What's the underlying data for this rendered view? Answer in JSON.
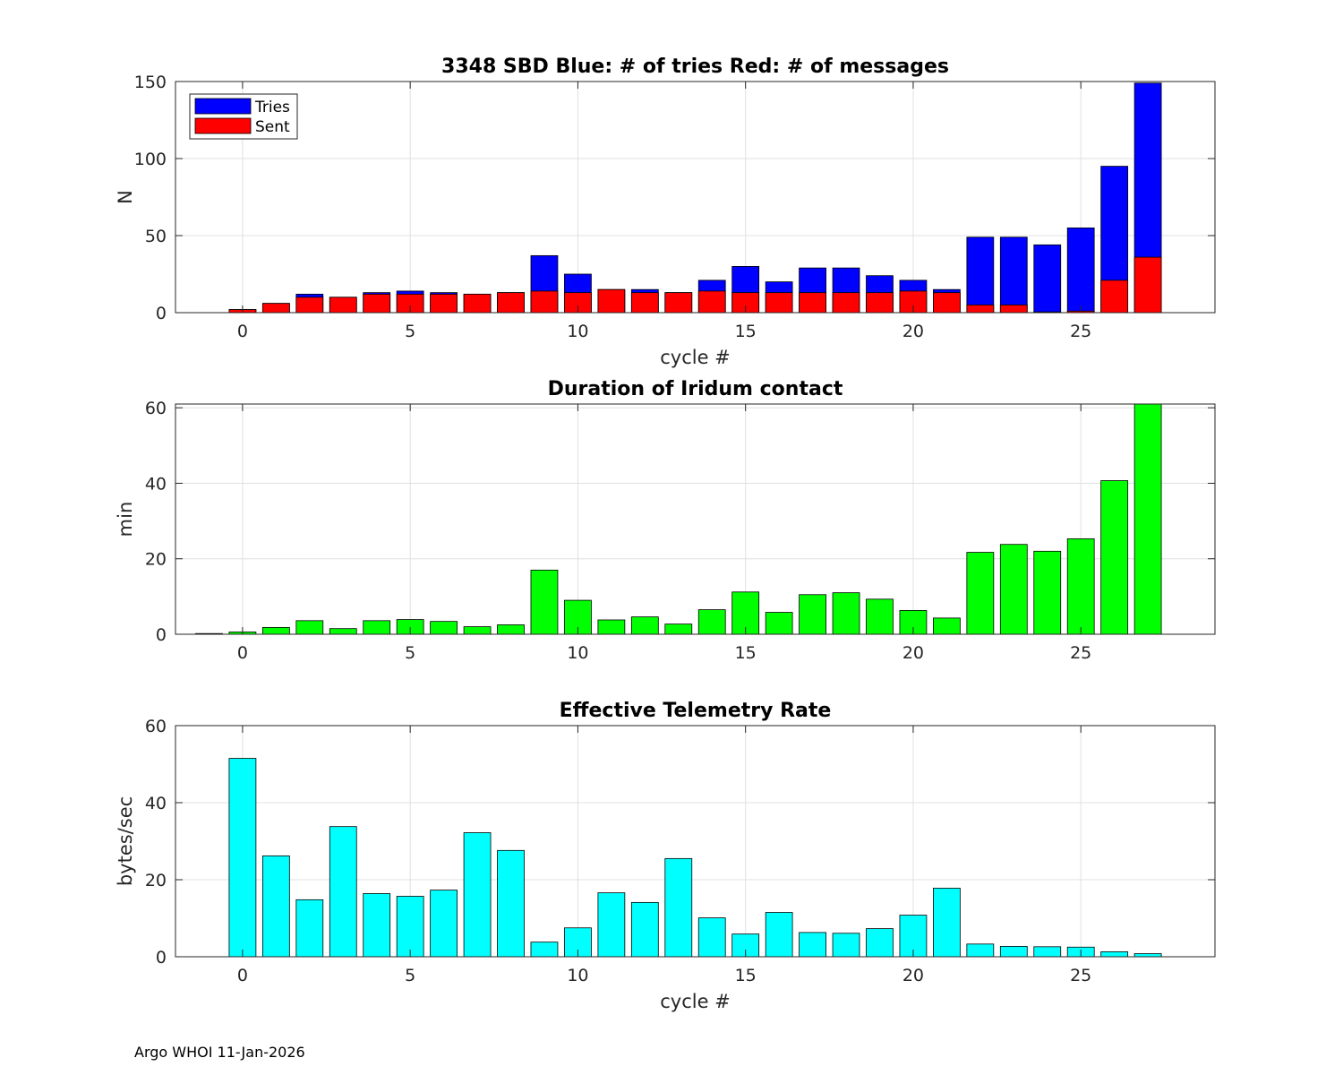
{
  "footer": "Argo WHOI 11-Jan-2026",
  "colors": {
    "tries": "#0000ff",
    "sent": "#ff0000",
    "duration": "#00ff00",
    "rate": "#00ffff",
    "grid": "#e0e0e0",
    "axis": "#262626"
  },
  "chart_data": [
    {
      "type": "bar",
      "title": "3348 SBD  Blue: # of tries   Red: # of messages",
      "xlabel": "cycle #",
      "ylabel": "N",
      "xlim": [
        -2,
        29
      ],
      "ylim": [
        0,
        150
      ],
      "xticks": [
        0,
        5,
        10,
        15,
        20,
        25
      ],
      "yticks": [
        0,
        50,
        100,
        150
      ],
      "grid": true,
      "legend": {
        "placement": "top-left",
        "entries": [
          "Tries",
          "Sent"
        ]
      },
      "x": [
        0,
        1,
        2,
        3,
        4,
        5,
        6,
        7,
        8,
        9,
        10,
        11,
        12,
        13,
        14,
        15,
        16,
        17,
        18,
        19,
        20,
        21,
        22,
        23,
        24,
        25,
        26,
        27
      ],
      "series": [
        {
          "name": "Tries",
          "color": "#0000ff",
          "values": [
            2,
            6,
            12,
            10,
            13,
            14,
            13,
            12,
            13,
            37,
            25,
            15,
            15,
            13,
            21,
            30,
            20,
            29,
            29,
            24,
            21,
            15,
            49,
            49,
            44,
            55,
            95,
            149
          ]
        },
        {
          "name": "Sent",
          "color": "#ff0000",
          "values": [
            2,
            6,
            10,
            10,
            12,
            12,
            12,
            12,
            13,
            14,
            13,
            15,
            13,
            13,
            14,
            13,
            13,
            13,
            13,
            13,
            14,
            13,
            5,
            5,
            0,
            1,
            21,
            36
          ]
        }
      ]
    },
    {
      "type": "bar",
      "title": "Duration of Iridum contact",
      "xlabel": "",
      "ylabel": "min",
      "xlim": [
        -2,
        29
      ],
      "ylim": [
        0,
        61
      ],
      "xticks": [
        0,
        5,
        10,
        15,
        20,
        25
      ],
      "yticks": [
        0,
        20,
        40,
        60
      ],
      "grid": true,
      "x": [
        -1,
        0,
        1,
        2,
        3,
        4,
        5,
        6,
        7,
        8,
        9,
        10,
        11,
        12,
        13,
        14,
        15,
        16,
        17,
        18,
        19,
        20,
        21,
        22,
        23,
        24,
        25,
        26,
        27
      ],
      "values": [
        0.1,
        0.6,
        1.8,
        3.6,
        1.5,
        3.6,
        3.9,
        3.4,
        2.0,
        2.5,
        17.0,
        9.0,
        3.8,
        4.6,
        2.7,
        6.5,
        11.2,
        5.8,
        10.5,
        11.0,
        9.3,
        6.3,
        4.3,
        21.7,
        23.8,
        22.0,
        25.3,
        40.7,
        61
      ]
    },
    {
      "type": "bar",
      "title": "Effective Telemetry Rate",
      "xlabel": "cycle #",
      "ylabel": "bytes/sec",
      "xlim": [
        -2,
        29
      ],
      "ylim": [
        0,
        60
      ],
      "xticks": [
        0,
        5,
        10,
        15,
        20,
        25
      ],
      "yticks": [
        0,
        20,
        40,
        60
      ],
      "grid": true,
      "x": [
        0,
        1,
        2,
        3,
        4,
        5,
        6,
        7,
        8,
        9,
        10,
        11,
        12,
        13,
        14,
        15,
        16,
        17,
        18,
        19,
        20,
        21,
        22,
        23,
        24,
        25,
        26,
        27
      ],
      "values": [
        51.5,
        26.2,
        14.8,
        33.8,
        16.4,
        15.7,
        17.3,
        32.2,
        27.6,
        3.8,
        7.5,
        16.6,
        14.1,
        25.5,
        10.1,
        5.9,
        11.5,
        6.3,
        6.1,
        7.3,
        10.8,
        17.8,
        3.3,
        2.7,
        2.6,
        2.5,
        1.3,
        0.8
      ]
    }
  ]
}
